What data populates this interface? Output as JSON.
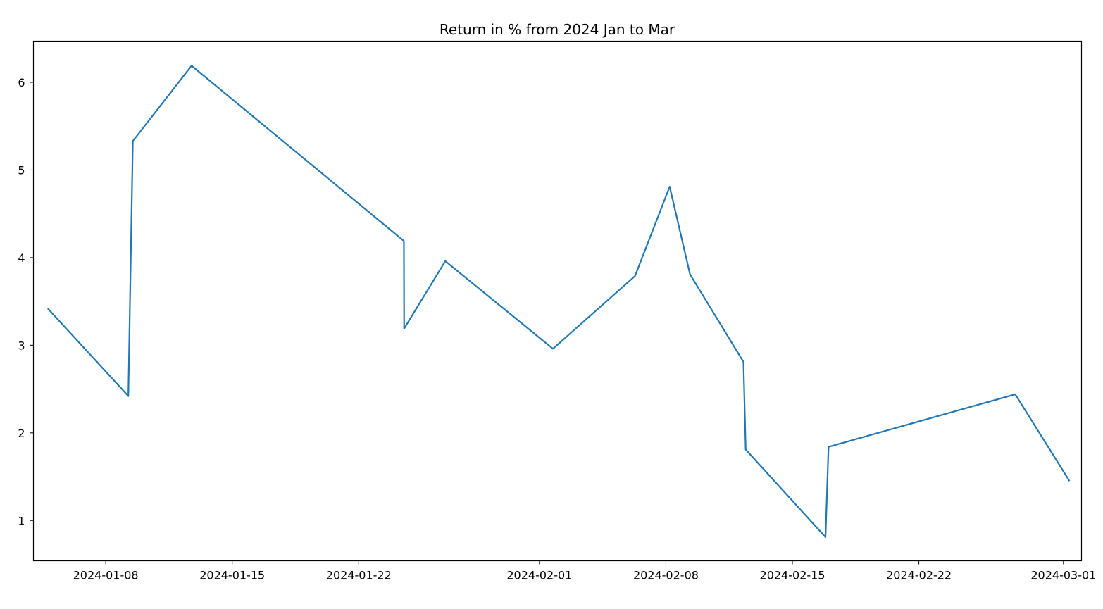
{
  "chart_data": {
    "type": "line",
    "title": "Return in % from 2024 Jan to Mar",
    "xlabel": "",
    "ylabel": "",
    "x_axis_type": "date",
    "xlim": [
      "2024-01-04",
      "2024-03-02"
    ],
    "ylim": [
      0.54,
      6.47
    ],
    "x_ticks": [
      "2024-01-08",
      "2024-01-15",
      "2024-01-22",
      "2024-02-01",
      "2024-02-08",
      "2024-02-15",
      "2024-02-22",
      "2024-03-01"
    ],
    "y_ticks": [
      1,
      2,
      3,
      4,
      5,
      6
    ],
    "grid": false,
    "legend": "none",
    "colors": {
      "line": "#1f77b4",
      "axes": "#000000",
      "background": "#ffffff"
    },
    "series": [
      {
        "x": [
          "2024-01-04T19:00",
          "2024-01-09T06:00",
          "2024-01-09T12:00",
          "2024-01-12T18:00",
          "2024-01-24T12:00",
          "2024-01-24T12:20",
          "2024-01-26T19:00",
          "2024-02-01T18:00",
          "2024-02-06T07:00",
          "2024-02-08T05:00",
          "2024-02-09T08:00",
          "2024-02-12T07:00",
          "2024-02-12T10:00",
          "2024-02-16T20:00",
          "2024-02-17T00:00",
          "2024-02-27T08:00",
          "2024-03-01T08:00"
        ],
        "values": [
          3.42,
          2.42,
          5.33,
          6.19,
          4.19,
          3.19,
          3.96,
          2.96,
          3.79,
          4.81,
          3.81,
          2.81,
          1.81,
          0.81,
          1.84,
          2.44,
          1.45
        ]
      }
    ]
  }
}
